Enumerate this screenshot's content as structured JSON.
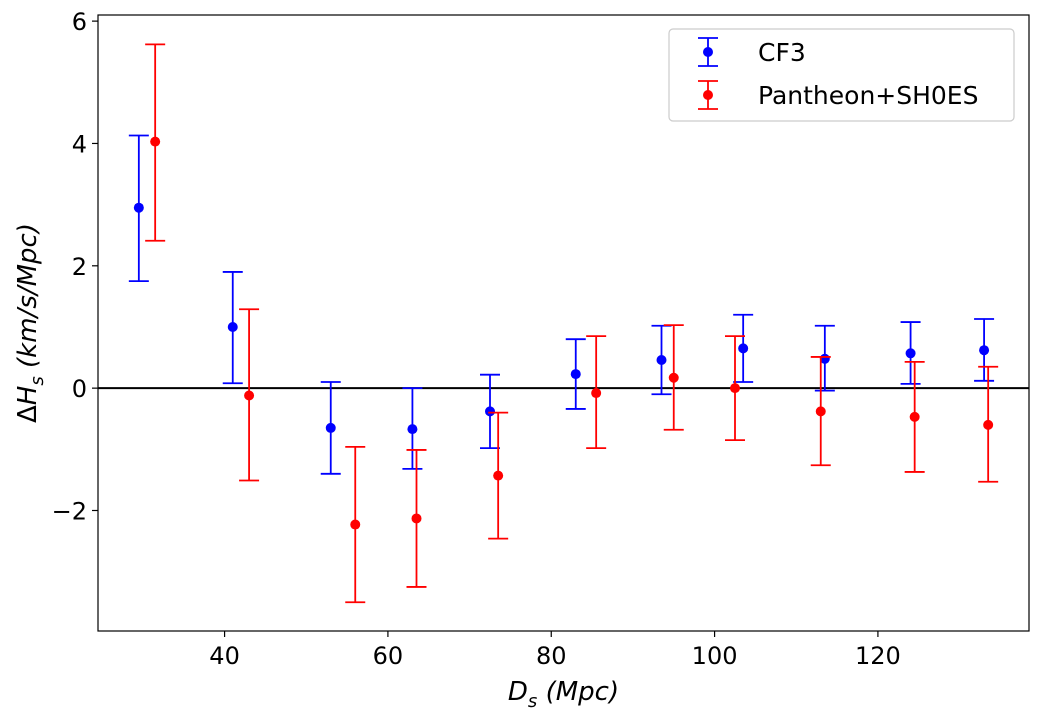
{
  "chart_data": {
    "type": "scatter",
    "subtype": "errorbar",
    "xlabel": "D_s (Mpc)",
    "ylabel": "ΔH_s (km/s/Mpc)",
    "xlabel_parts": {
      "main": "D",
      "sub": "s",
      "rest": " (Mpc)"
    },
    "ylabel_parts": {
      "delta": "Δ",
      "main": "H",
      "sub": "s",
      "rest": " (km/s/Mpc)"
    },
    "xlim": [
      24.5,
      138.5
    ],
    "ylim": [
      -3.97,
      6.1
    ],
    "xticks": [
      40,
      60,
      80,
      100,
      120
    ],
    "yticks": [
      -2,
      0,
      2,
      4,
      6
    ],
    "ytick_labels": [
      "−2",
      "0",
      "2",
      "4",
      "6"
    ],
    "reference_line": {
      "y": 0,
      "color": "#000000"
    },
    "grid": false,
    "legend_position": "top-right",
    "series": [
      {
        "name": "CF3",
        "color": "#0000ff",
        "x": [
          29.5,
          41.0,
          53.0,
          63.0,
          72.5,
          83.0,
          93.5,
          103.5,
          113.5,
          124.0,
          133.0
        ],
        "y": [
          2.95,
          1.0,
          -0.65,
          -0.67,
          -0.38,
          0.23,
          0.46,
          0.65,
          0.48,
          0.57,
          0.62
        ],
        "err_low": [
          1.2,
          0.92,
          0.75,
          0.65,
          0.6,
          0.57,
          0.56,
          0.55,
          0.52,
          0.5,
          0.5
        ],
        "err_high": [
          1.18,
          0.9,
          0.75,
          0.67,
          0.6,
          0.57,
          0.56,
          0.55,
          0.54,
          0.51,
          0.51
        ]
      },
      {
        "name": "Pantheon+SH0ES",
        "color": "#ff0000",
        "x": [
          31.5,
          43.0,
          56.0,
          63.5,
          73.5,
          85.5,
          95.0,
          102.5,
          113.0,
          124.5,
          133.5
        ],
        "y": [
          4.03,
          -0.12,
          -2.23,
          -2.13,
          -1.43,
          -0.08,
          0.17,
          0.0,
          -0.38,
          -0.47,
          -0.6
        ],
        "err_low": [
          1.62,
          1.39,
          1.27,
          1.12,
          1.03,
          0.9,
          0.85,
          0.85,
          0.88,
          0.9,
          0.93
        ],
        "err_high": [
          1.59,
          1.41,
          1.27,
          1.12,
          1.03,
          0.93,
          0.86,
          0.85,
          0.89,
          0.9,
          0.95
        ]
      }
    ]
  }
}
